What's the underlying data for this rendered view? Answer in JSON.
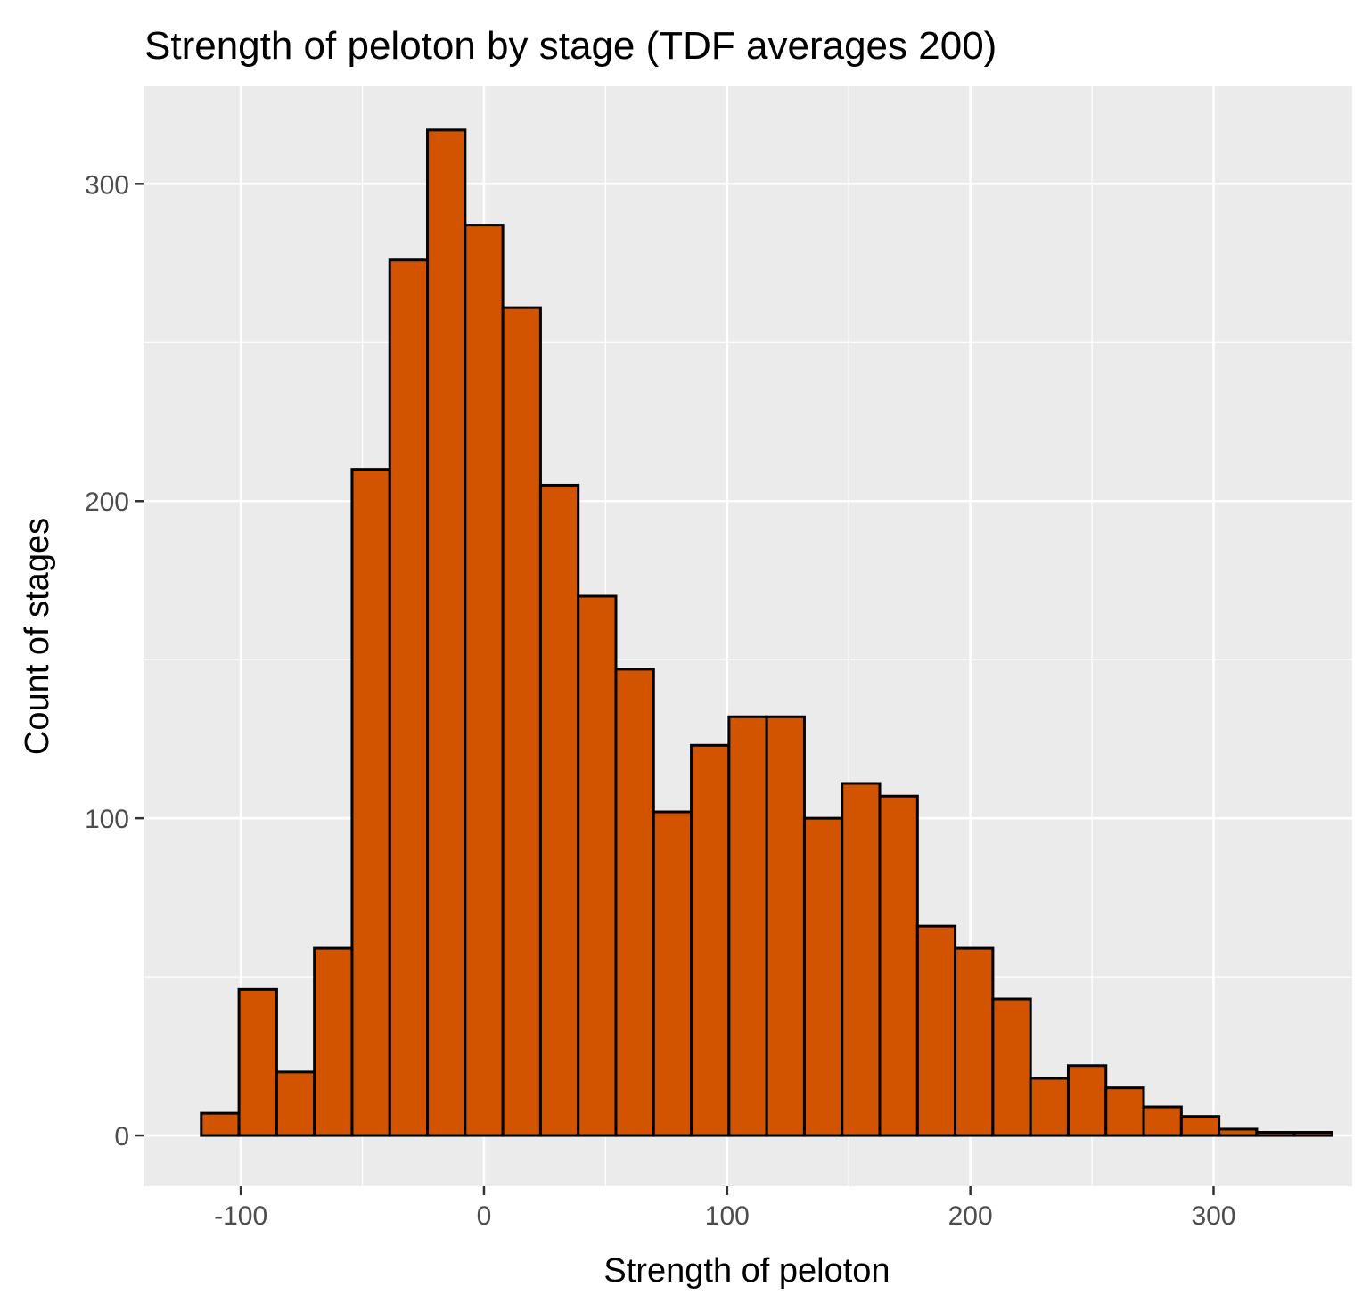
{
  "chart_data": {
    "type": "bar",
    "subtype": "histogram",
    "title": "Strength of peloton by stage (TDF averages 200)",
    "xlabel": "Strength of peloton",
    "ylabel": "Count of stages",
    "bin_width": 15.5,
    "bins": [
      {
        "x": -108.5,
        "count": 7
      },
      {
        "x": -93,
        "count": 46
      },
      {
        "x": -77.5,
        "count": 20
      },
      {
        "x": -62,
        "count": 59
      },
      {
        "x": -46.5,
        "count": 210
      },
      {
        "x": -31,
        "count": 276
      },
      {
        "x": -15.5,
        "count": 317
      },
      {
        "x": 0,
        "count": 287
      },
      {
        "x": 15.5,
        "count": 261
      },
      {
        "x": 31,
        "count": 205
      },
      {
        "x": 46.5,
        "count": 170
      },
      {
        "x": 62,
        "count": 147
      },
      {
        "x": 77.5,
        "count": 102
      },
      {
        "x": 93,
        "count": 123
      },
      {
        "x": 108.5,
        "count": 132
      },
      {
        "x": 124,
        "count": 132
      },
      {
        "x": 139.5,
        "count": 100
      },
      {
        "x": 155,
        "count": 111
      },
      {
        "x": 170.5,
        "count": 107
      },
      {
        "x": 186,
        "count": 66
      },
      {
        "x": 201.5,
        "count": 59
      },
      {
        "x": 217,
        "count": 43
      },
      {
        "x": 232.5,
        "count": 18
      },
      {
        "x": 248,
        "count": 22
      },
      {
        "x": 263.5,
        "count": 15
      },
      {
        "x": 279,
        "count": 9
      },
      {
        "x": 294.5,
        "count": 6
      },
      {
        "x": 310,
        "count": 2
      },
      {
        "x": 325.5,
        "count": 1
      },
      {
        "x": 341,
        "count": 1
      }
    ],
    "xlim": [
      -140,
      357
    ],
    "ylim": [
      -16,
      331
    ],
    "x_ticks": [
      -100,
      0,
      100,
      200,
      300
    ],
    "x_tick_labels": [
      "-100",
      "0",
      "100",
      "200",
      "300"
    ],
    "y_ticks": [
      0,
      100,
      200,
      300
    ],
    "y_tick_labels": [
      "0",
      "100",
      "200",
      "300"
    ],
    "x_minor_ticks": [
      -50,
      50,
      150,
      250
    ],
    "y_minor_ticks": [
      50,
      150,
      250
    ],
    "grid": true,
    "legend": "none",
    "colors": {
      "bar_fill": "#d35400",
      "bar_stroke": "#000000",
      "panel_background": "#ebebeb",
      "grid": "#ffffff",
      "tick_label": "#4d4d4d",
      "axis_tick": "#333333"
    }
  }
}
